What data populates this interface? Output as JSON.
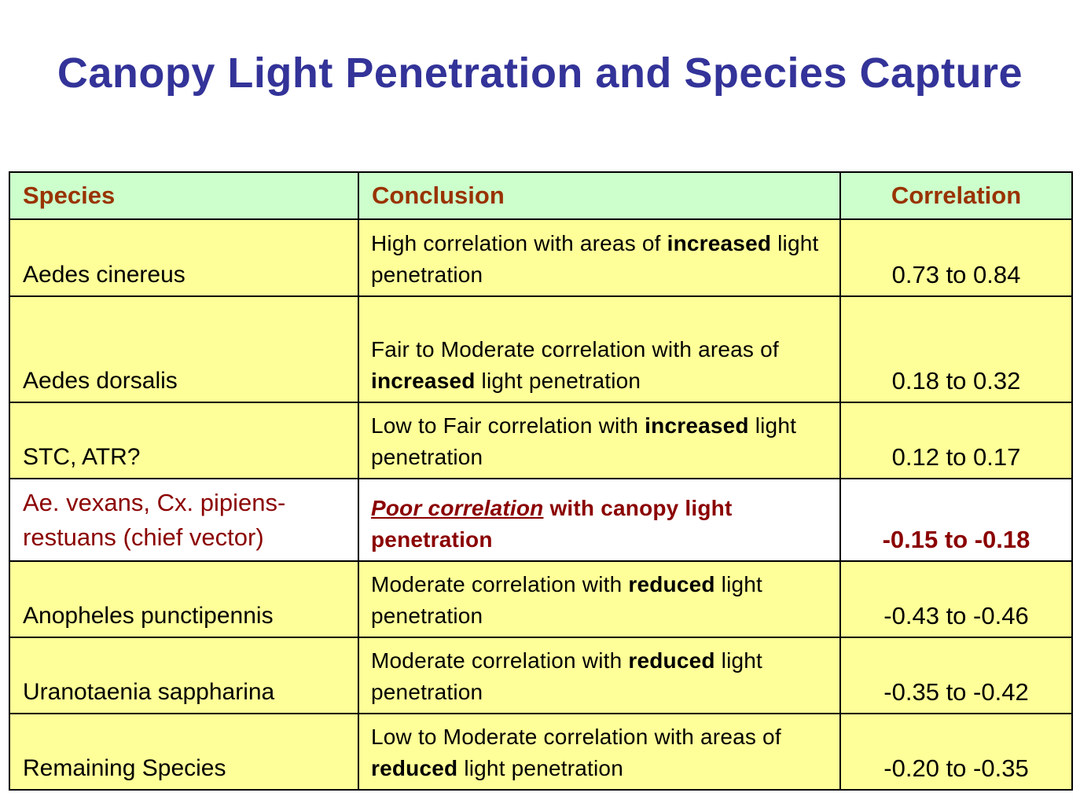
{
  "title": "Canopy Light Penetration and Species Capture",
  "colors": {
    "title": "#333399",
    "header_bg": "#ccffcc",
    "header_text": "#993300",
    "row_bg": "#ffff99",
    "highlight_bg": "#ffffff",
    "highlight_text": "#8b0000"
  },
  "table": {
    "headers": {
      "species": "Species",
      "conclusion": "Conclusion",
      "correlation": "Correlation"
    },
    "rows": [
      {
        "species": "Aedes cinereus",
        "conclusion_a": "High correlation with areas of",
        "conclusion_bold": "increased",
        "conclusion_b": "light penetration",
        "correlation": "0.73 to 0.84"
      },
      {
        "species": "Aedes dorsalis",
        "conclusion_a": "Fair to Moderate correlation with areas of",
        "conclusion_bold": "increased",
        "conclusion_b": "light penetration",
        "correlation": "0.18 to 0.32"
      },
      {
        "species": "STC, ATR?",
        "conclusion_a": "Low to Fair correlation with",
        "conclusion_bold": "increased",
        "conclusion_b": "light penetration",
        "correlation": "0.12 to 0.17"
      },
      {
        "species_line1": "Ae. vexans, Cx. pipiens-",
        "species_line2": "restuans (chief vector)",
        "conclusion_emph": "Poor correlation",
        "conclusion_rest": "with canopy light penetration",
        "correlation": "-0.15 to -0.18"
      },
      {
        "species": "Anopheles punctipennis",
        "conclusion_a": "Moderate correlation with",
        "conclusion_bold": "reduced",
        "conclusion_b": "light penetration",
        "correlation": "-0.43 to -0.46"
      },
      {
        "species": "Uranotaenia sappharina",
        "conclusion_a": "Moderate correlation with",
        "conclusion_bold": "reduced",
        "conclusion_b": "light penetration",
        "correlation": "-0.35 to -0.42"
      },
      {
        "species": "Remaining Species",
        "conclusion_a": "Low to Moderate correlation with areas of",
        "conclusion_bold": "reduced",
        "conclusion_b": "light penetration",
        "correlation": "-0.20 to -0.35"
      }
    ]
  }
}
